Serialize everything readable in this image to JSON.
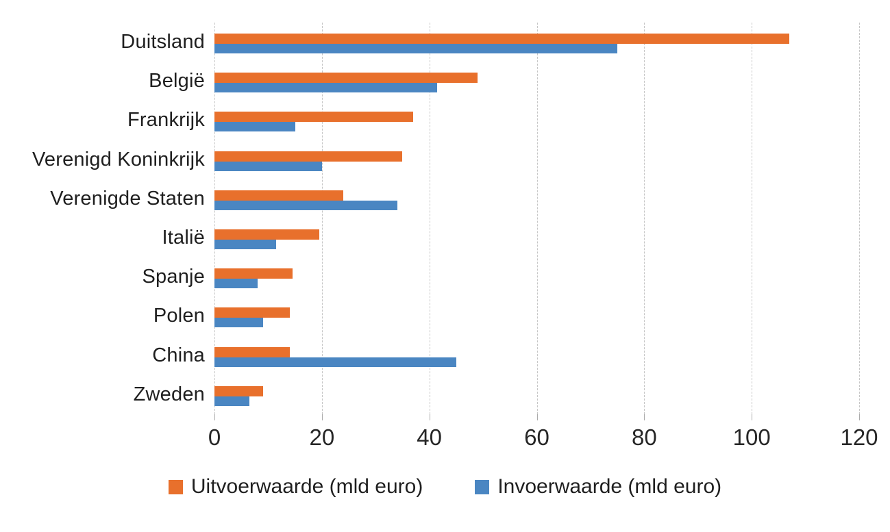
{
  "chart_data": {
    "type": "bar",
    "orientation": "horizontal",
    "title": "",
    "categories": [
      "Duitsland",
      "België",
      "Frankrijk",
      "Verenigd Koninkrijk",
      "Verenigde Staten",
      "Italië",
      "Spanje",
      "Polen",
      "China",
      "Zweden"
    ],
    "series": [
      {
        "name": "Uitvoerwaarde (mld euro)",
        "color": "#e8702c",
        "values": [
          107,
          49,
          37,
          35,
          24,
          19.5,
          14.5,
          14,
          14,
          9
        ]
      },
      {
        "name": "Invoerwaarde (mld euro)",
        "color": "#4a86c2",
        "values": [
          75,
          41.5,
          15,
          20,
          34,
          11.5,
          8,
          9,
          45,
          6.5
        ]
      }
    ],
    "xlim": [
      0,
      120
    ],
    "xticks": [
      "0",
      "20",
      "40",
      "60",
      "80",
      "100",
      "120"
    ],
    "grid": "vertical-dashed",
    "legend_position": "bottom-center"
  },
  "styles": {
    "background": "#ffffff",
    "gridline_color": "#c6c6c6",
    "tick_color": "#ababab",
    "text_color": "#1f1f1f"
  }
}
